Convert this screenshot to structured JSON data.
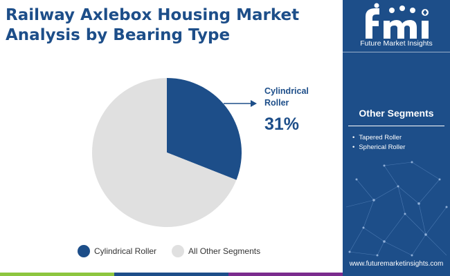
{
  "title": {
    "line1": "Railway Axlebox Housing Market",
    "line2": "Analysis by Bearing Type"
  },
  "brand": {
    "logo_letters": "fmi",
    "name": "Future Market Insights",
    "website": "www.futuremarketinsights.com"
  },
  "colors": {
    "primary": "#1d4e89",
    "other": "#e0e0e0",
    "bar_green": "#8dc63f",
    "bar_blue": "#1d4e89",
    "bar_purple": "#7b2c8e"
  },
  "callout": {
    "label": "Cylindrical Roller",
    "value": "31%"
  },
  "other_segments": {
    "heading": "Other Segments",
    "items": [
      "Tapered Roller",
      "Spherical Roller"
    ]
  },
  "legend": {
    "items": [
      {
        "label": "Cylindrical Roller",
        "color": "#1d4e89"
      },
      {
        "label": "All Other Segments",
        "color": "#e0e0e0"
      }
    ]
  },
  "chart_data": {
    "type": "pie",
    "title": "Railway Axlebox Housing Market Analysis by Bearing Type",
    "categories": [
      "Cylindrical Roller",
      "All Other Segments"
    ],
    "values": [
      31,
      69
    ],
    "colors": [
      "#1d4e89",
      "#e0e0e0"
    ],
    "legend": "bottom"
  }
}
